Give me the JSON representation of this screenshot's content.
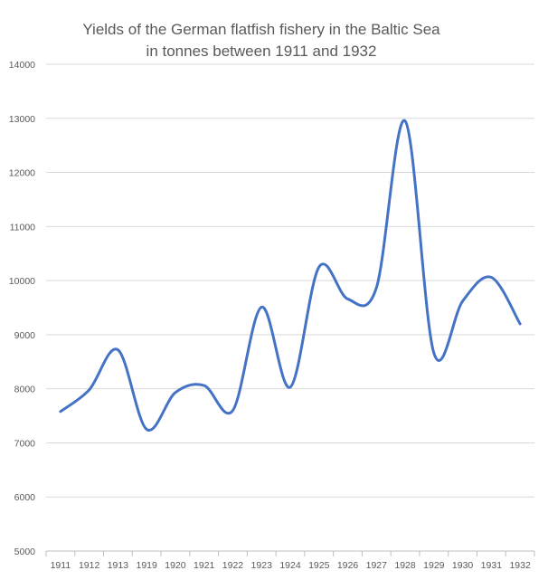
{
  "chart_data": {
    "type": "line",
    "title_line1": "Yields of the German flatfish fishery in the Baltic Sea",
    "title_line2": "in tonnes between 1911 and 1932",
    "xlabel": "",
    "ylabel": "",
    "categories": [
      "1911",
      "1912",
      "1913",
      "1919",
      "1920",
      "1921",
      "1922",
      "1923",
      "1924",
      "1925",
      "1926",
      "1927",
      "1928",
      "1929",
      "1930",
      "1931",
      "1932"
    ],
    "series": [
      {
        "values": [
          7580,
          7980,
          8720,
          7250,
          7930,
          8060,
          7600,
          9510,
          8030,
          10250,
          9660,
          9870,
          12950,
          8660,
          9620,
          10060,
          9200
        ],
        "color": "#4472c4"
      }
    ],
    "ylim": [
      5000,
      14000
    ],
    "y_ticks": [
      5000,
      6000,
      7000,
      8000,
      9000,
      10000,
      11000,
      12000,
      13000,
      14000
    ],
    "smooth": true,
    "grid": true,
    "legend": "none"
  }
}
